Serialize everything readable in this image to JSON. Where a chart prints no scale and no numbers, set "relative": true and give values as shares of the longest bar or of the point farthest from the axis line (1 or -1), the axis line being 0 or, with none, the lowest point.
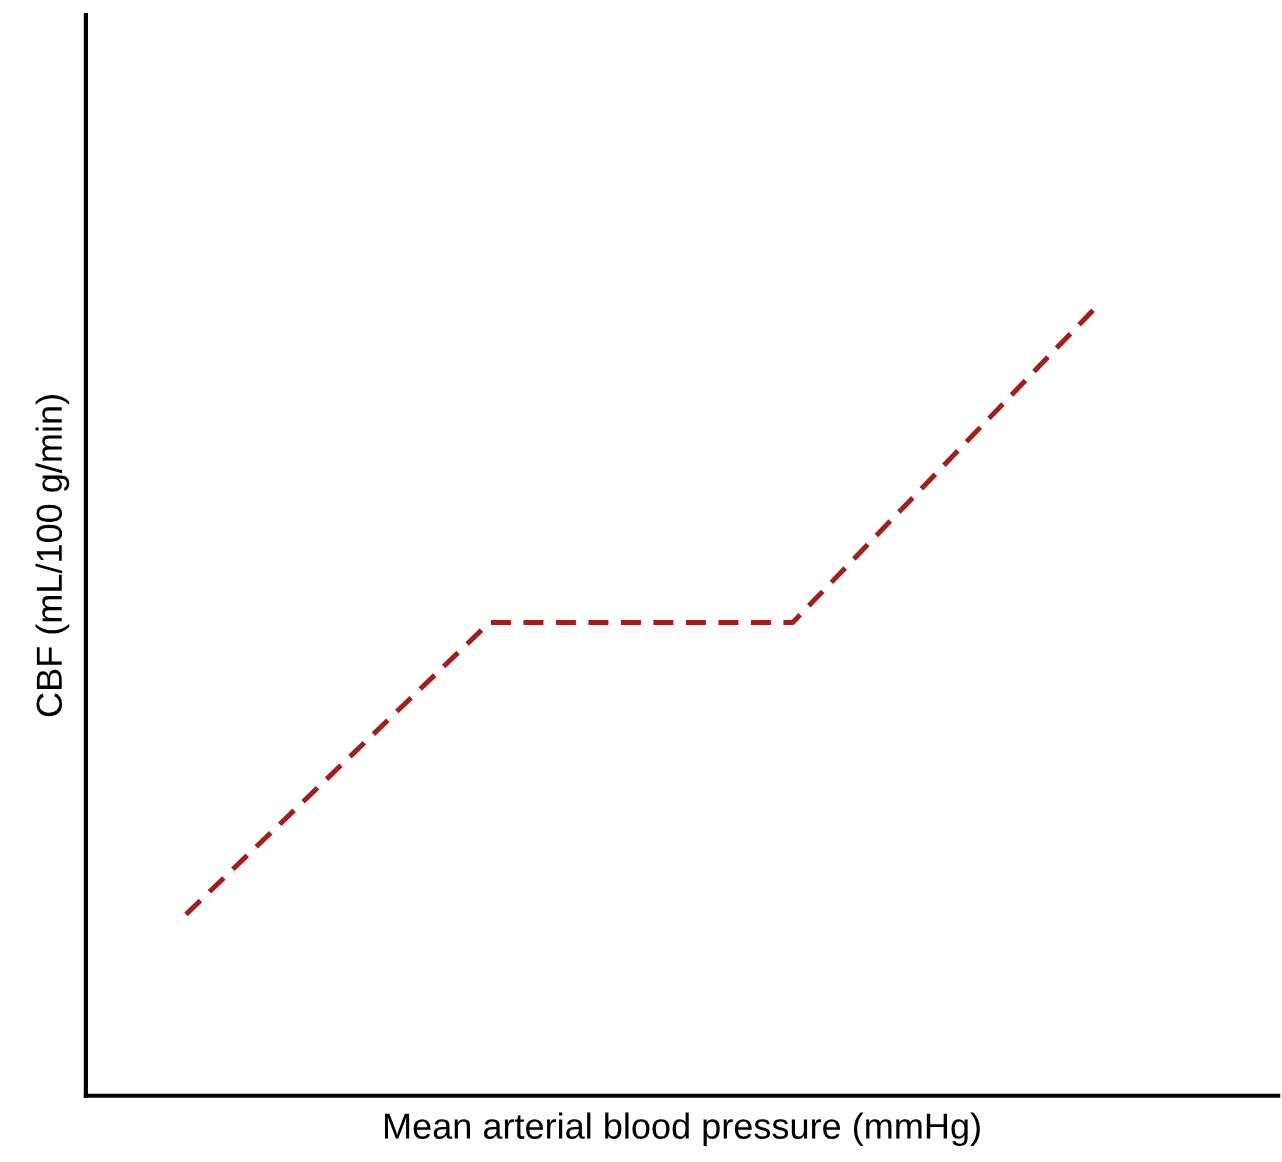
{
  "chart_data": {
    "type": "line",
    "relative": true,
    "xlabel": "Mean arterial blood pressure (mmHg)",
    "ylabel": "CBF (mL/100 g/min)",
    "categories": [
      null,
      null,
      null,
      null
    ],
    "series": [
      {
        "color": "#a0201c",
        "values": [
          0.23,
          0.6,
          0.6,
          1
        ]
      }
    ],
    "line_style": "dashed",
    "marker": "none",
    "grid": false,
    "tick_labels": false
  }
}
